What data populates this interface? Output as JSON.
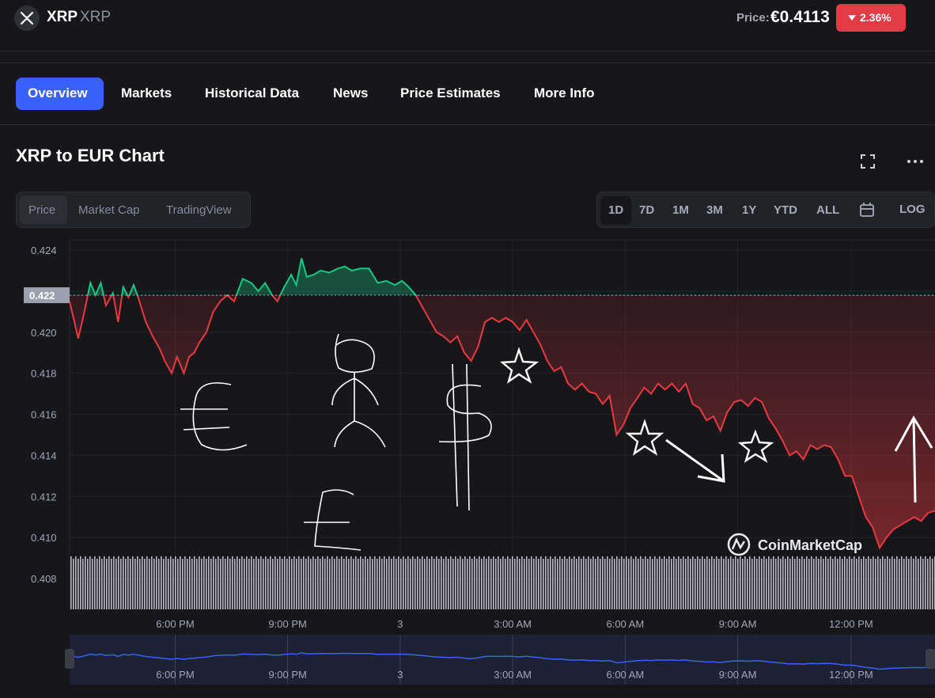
{
  "header": {
    "coin_name": "XRP",
    "coin_symbol": "XRP",
    "price_label": "Price:",
    "price_value": "€0.4113",
    "change": "2.36%",
    "change_color": "#e23b46",
    "logo_icon": "xrp-logo-icon"
  },
  "tabs": [
    {
      "label": "Overview",
      "active": true
    },
    {
      "label": "Markets"
    },
    {
      "label": "Historical Data"
    },
    {
      "label": "News"
    },
    {
      "label": "Price Estimates"
    },
    {
      "label": "More Info"
    }
  ],
  "chart_header": {
    "title": "XRP to EUR Chart",
    "fullscreen_icon": "fullscreen-icon",
    "more_icon": "more-options-icon"
  },
  "chart_type_tabs": [
    {
      "label": "Price",
      "active": true
    },
    {
      "label": "Market Cap"
    },
    {
      "label": "TradingView"
    }
  ],
  "range_tabs": [
    {
      "label": "1D",
      "active": true
    },
    {
      "label": "7D"
    },
    {
      "label": "1M"
    },
    {
      "label": "3M"
    },
    {
      "label": "1Y"
    },
    {
      "label": "YTD"
    },
    {
      "label": "ALL"
    },
    {
      "label": "calendar",
      "icon": "calendar-icon"
    },
    {
      "label": "LOG"
    }
  ],
  "watermark": "CoinMarketCap",
  "chart_data": {
    "type": "line",
    "title": "",
    "reference_price": 0.4218,
    "reference_label": "0.422",
    "y_ticks": [
      0.408,
      0.41,
      0.412,
      0.414,
      0.416,
      0.418,
      0.42,
      0.422,
      0.424
    ],
    "y_tick_labels": [
      "0.408",
      "0.410",
      "0.412",
      "0.414",
      "0.416",
      "0.418",
      "0.420",
      "0.422",
      "0.424"
    ],
    "ylim": [
      0.4065,
      0.4245
    ],
    "xlim": [
      0,
      1
    ],
    "x_ticks": [
      {
        "x": 0.122,
        "label": "6:00 PM"
      },
      {
        "x": 0.252,
        "label": "9:00 PM"
      },
      {
        "x": 0.382,
        "label": "3"
      },
      {
        "x": 0.512,
        "label": "3:00 AM"
      },
      {
        "x": 0.642,
        "label": "6:00 AM"
      },
      {
        "x": 0.772,
        "label": "9:00 AM"
      },
      {
        "x": 0.903,
        "label": "12:00 PM"
      }
    ],
    "colors": {
      "up": "#16c784",
      "down": "#ea3943",
      "navigator": "#3861fb"
    },
    "series": [
      {
        "x": [
          0.0,
          0.01,
          0.016,
          0.024,
          0.03,
          0.036,
          0.042,
          0.05,
          0.056,
          0.062,
          0.068,
          0.074,
          0.08,
          0.088,
          0.096,
          0.104,
          0.11,
          0.118,
          0.124,
          0.132,
          0.138,
          0.144,
          0.15,
          0.158,
          0.166,
          0.174,
          0.182,
          0.19,
          0.2,
          0.21,
          0.218,
          0.226,
          0.234,
          0.24,
          0.248,
          0.256,
          0.262,
          0.268,
          0.274,
          0.282,
          0.29,
          0.3,
          0.31,
          0.318,
          0.326,
          0.336,
          0.346,
          0.356,
          0.366,
          0.376,
          0.384,
          0.392,
          0.4,
          0.408,
          0.416,
          0.424,
          0.432,
          0.44,
          0.448,
          0.456,
          0.464,
          0.472,
          0.48,
          0.488,
          0.496,
          0.504,
          0.512,
          0.52,
          0.528,
          0.536,
          0.544,
          0.552,
          0.56,
          0.568,
          0.576,
          0.584,
          0.592,
          0.6,
          0.608,
          0.616,
          0.624,
          0.632,
          0.64,
          0.648,
          0.656,
          0.664,
          0.672,
          0.68,
          0.688,
          0.696,
          0.704,
          0.712,
          0.72,
          0.728,
          0.736,
          0.744,
          0.752,
          0.76,
          0.768,
          0.776,
          0.784,
          0.792,
          0.8,
          0.808,
          0.816,
          0.824,
          0.832,
          0.84,
          0.848,
          0.856,
          0.864,
          0.872,
          0.88,
          0.888,
          0.896,
          0.904,
          0.912,
          0.92,
          0.928,
          0.936,
          0.944,
          0.952,
          0.96,
          0.968,
          0.976,
          0.984,
          0.992,
          1.0
        ],
        "y": [
          0.4215,
          0.4197,
          0.4208,
          0.4224,
          0.4218,
          0.4224,
          0.4213,
          0.4219,
          0.4205,
          0.4222,
          0.4217,
          0.4223,
          0.4216,
          0.4205,
          0.4198,
          0.4192,
          0.4186,
          0.418,
          0.4188,
          0.418,
          0.4188,
          0.419,
          0.4195,
          0.42,
          0.421,
          0.4215,
          0.4218,
          0.4215,
          0.4226,
          0.4224,
          0.422,
          0.4224,
          0.4218,
          0.4215,
          0.4222,
          0.4228,
          0.4223,
          0.4236,
          0.4227,
          0.4228,
          0.423,
          0.4229,
          0.4231,
          0.4232,
          0.423,
          0.4231,
          0.4231,
          0.4224,
          0.4225,
          0.4223,
          0.4225,
          0.4222,
          0.4218,
          0.4212,
          0.4206,
          0.42,
          0.4198,
          0.4195,
          0.4198,
          0.419,
          0.4186,
          0.4193,
          0.4205,
          0.4207,
          0.4205,
          0.4207,
          0.4205,
          0.4201,
          0.4206,
          0.42,
          0.4194,
          0.4186,
          0.4181,
          0.4183,
          0.4175,
          0.4172,
          0.4175,
          0.4171,
          0.417,
          0.4165,
          0.4169,
          0.415,
          0.4155,
          0.4163,
          0.4168,
          0.4173,
          0.417,
          0.4175,
          0.4172,
          0.4175,
          0.4171,
          0.4175,
          0.4165,
          0.4163,
          0.4157,
          0.4159,
          0.4152,
          0.4161,
          0.4166,
          0.4167,
          0.4164,
          0.4168,
          0.4166,
          0.4158,
          0.4153,
          0.4147,
          0.414,
          0.4142,
          0.4138,
          0.4145,
          0.4143,
          0.4145,
          0.4144,
          0.4138,
          0.413,
          0.413,
          0.412,
          0.411,
          0.4105,
          0.4095,
          0.41,
          0.4104,
          0.4106,
          0.4108,
          0.411,
          0.4108,
          0.4112,
          0.4113
        ]
      }
    ]
  }
}
